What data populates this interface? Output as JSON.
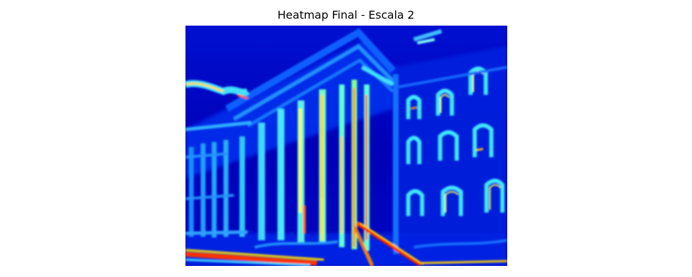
{
  "figure": {
    "title": "Heatmap Final - Escala 2",
    "colormap": "jet",
    "axes_visible": false,
    "background_color": "#ffffff",
    "image_description_colors": {
      "low": "#00008f",
      "mid": "#00c0ff",
      "high": "#ffff00",
      "peak": "#ff2000"
    }
  }
}
